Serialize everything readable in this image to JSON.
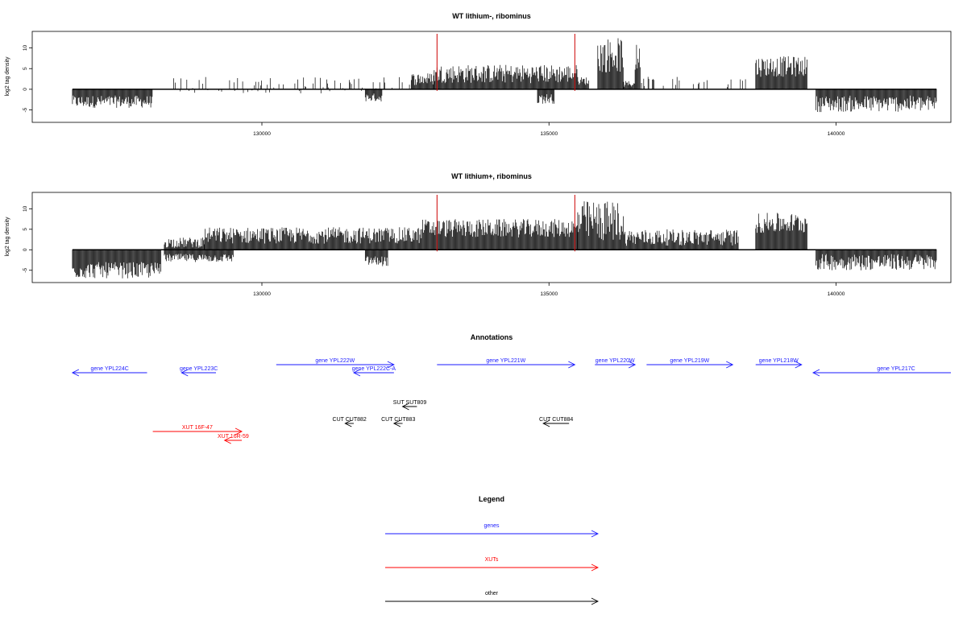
{
  "chart_data": [
    {
      "type": "bar",
      "title": "WT lithium-, ribominus",
      "ylabel": "log2 tag density",
      "xlim": [
        126000,
        142000
      ],
      "ylim": [
        -8,
        14
      ],
      "x_ticks": [
        "130000",
        "135000",
        "140000"
      ],
      "y_ticks": [
        "-5",
        "0",
        "5",
        "10"
      ],
      "marker_lines_x": [
        133050,
        135450
      ],
      "marker_color": "#cc0000",
      "regions": [
        {
          "x_start": 126700,
          "x_end": 128100,
          "y_min": -4.5,
          "y_max": -1.5
        },
        {
          "x_start": 128300,
          "x_end": 132600,
          "y_min": -1.0,
          "y_max": 3.0,
          "density": 0.25
        },
        {
          "x_start": 131800,
          "x_end": 132100,
          "y_min": -3.0,
          "y_max": -1.0
        },
        {
          "x_start": 132600,
          "x_end": 133000,
          "y_min": 1.0,
          "y_max": 4.0
        },
        {
          "x_start": 133000,
          "x_end": 135500,
          "y_min": 1.5,
          "y_max": 6.0
        },
        {
          "x_start": 134800,
          "x_end": 135100,
          "y_min": -3.5,
          "y_max": -1.0
        },
        {
          "x_start": 135500,
          "x_end": 135700,
          "y_min": 1.0,
          "y_max": 3.0
        },
        {
          "x_start": 135850,
          "x_end": 136300,
          "y_min": 4.0,
          "y_max": 12.5
        },
        {
          "x_start": 136300,
          "x_end": 136500,
          "y_min": 0.5,
          "y_max": 2.0
        },
        {
          "x_start": 136500,
          "x_end": 136600,
          "y_min": 4.0,
          "y_max": 11.0
        },
        {
          "x_start": 136600,
          "x_end": 137300,
          "y_min": 0.5,
          "y_max": 3.0,
          "density": 0.3
        },
        {
          "x_start": 137500,
          "x_end": 138500,
          "y_min": 0.5,
          "y_max": 3.0,
          "density": 0.2
        },
        {
          "x_start": 138600,
          "x_end": 139500,
          "y_min": 3.0,
          "y_max": 8.0
        },
        {
          "x_start": 139650,
          "x_end": 141750,
          "y_min": -5.5,
          "y_max": -1.5
        }
      ]
    },
    {
      "type": "bar",
      "title": "WT lithium+, ribominus",
      "ylabel": "log2 tag density",
      "xlim": [
        126000,
        142000
      ],
      "ylim": [
        -8,
        14
      ],
      "x_ticks": [
        "130000",
        "135000",
        "140000"
      ],
      "y_ticks": [
        "-5",
        "0",
        "5",
        "10"
      ],
      "marker_lines_x": [
        133050,
        135450
      ],
      "marker_color": "#cc0000",
      "regions": [
        {
          "x_start": 126700,
          "x_end": 128250,
          "y_min": -7.0,
          "y_max": -3.0
        },
        {
          "x_start": 128300,
          "x_end": 129000,
          "y_min": 0.5,
          "y_max": 3.0
        },
        {
          "x_start": 128300,
          "x_end": 129500,
          "y_min": -3.0,
          "y_max": -1.0
        },
        {
          "x_start": 129000,
          "x_end": 132800,
          "y_min": 1.5,
          "y_max": 5.5
        },
        {
          "x_start": 131800,
          "x_end": 132200,
          "y_min": -4.0,
          "y_max": -1.5
        },
        {
          "x_start": 132800,
          "x_end": 135500,
          "y_min": 3.0,
          "y_max": 7.5
        },
        {
          "x_start": 135500,
          "x_end": 136300,
          "y_min": 2.0,
          "y_max": 12.0
        },
        {
          "x_start": 136300,
          "x_end": 138300,
          "y_min": 1.0,
          "y_max": 5.0
        },
        {
          "x_start": 138600,
          "x_end": 139500,
          "y_min": 4.0,
          "y_max": 9.0
        },
        {
          "x_start": 139650,
          "x_end": 141750,
          "y_min": -5.0,
          "y_max": -1.0
        }
      ]
    }
  ],
  "annotations": {
    "title": "Annotations",
    "features": [
      {
        "label": "gene YPL224C",
        "x_start": 126700,
        "x_end": 128000,
        "strand": "-",
        "row": 2,
        "category": "genes"
      },
      {
        "label": "gene YPL223C",
        "x_start": 128600,
        "x_end": 129200,
        "strand": "-",
        "row": 2,
        "category": "genes"
      },
      {
        "label": "gene YPL222W",
        "x_start": 130250,
        "x_end": 132300,
        "strand": "+",
        "row": 1,
        "category": "genes"
      },
      {
        "label": "gene YPL222C-A",
        "x_start": 131600,
        "x_end": 132300,
        "strand": "-",
        "row": 2,
        "category": "genes"
      },
      {
        "label": "gene YPL221W",
        "x_start": 133050,
        "x_end": 135450,
        "strand": "+",
        "row": 1,
        "category": "genes"
      },
      {
        "label": "gene YPL220W",
        "x_start": 135800,
        "x_end": 136500,
        "strand": "+",
        "row": 1,
        "category": "genes"
      },
      {
        "label": "gene YPL219W",
        "x_start": 136700,
        "x_end": 138200,
        "strand": "+",
        "row": 1,
        "category": "genes"
      },
      {
        "label": "gene YPL218W",
        "x_start": 138600,
        "x_end": 139400,
        "strand": "+",
        "row": 1,
        "category": "genes"
      },
      {
        "label": "gene YPL217C",
        "x_start": 139600,
        "x_end": 142000,
        "strand": "-",
        "row": 2,
        "category": "genes"
      },
      {
        "label": "SUT SUT809",
        "x_start": 132450,
        "x_end": 132700,
        "strand": "-",
        "row": 4,
        "category": "other"
      },
      {
        "label": "CUT CUT882",
        "x_start": 131450,
        "x_end": 131600,
        "strand": "-",
        "row": 5,
        "category": "other"
      },
      {
        "label": "CUT CUT883",
        "x_start": 132300,
        "x_end": 132450,
        "strand": "-",
        "row": 5,
        "category": "other"
      },
      {
        "label": "CUT CUT884",
        "x_start": 134900,
        "x_end": 135350,
        "strand": "-",
        "row": 5,
        "category": "other"
      },
      {
        "label": "XUT 16F-47",
        "x_start": 128100,
        "x_end": 129650,
        "strand": "+",
        "row": 6,
        "category": "XUTs"
      },
      {
        "label": "XUT 16R-59",
        "x_start": 129350,
        "x_end": 129650,
        "strand": "-",
        "row": 7,
        "category": "XUTs"
      }
    ]
  },
  "legend": {
    "title": "Legend",
    "items": [
      {
        "label": "genes",
        "color": "#1a1aff"
      },
      {
        "label": "XUTs",
        "color": "#ff0000"
      },
      {
        "label": "other",
        "color": "#000000"
      }
    ]
  },
  "colors": {
    "genes": "#1a1aff",
    "XUTs": "#ff0000",
    "other": "#000000",
    "data": "#000000"
  }
}
